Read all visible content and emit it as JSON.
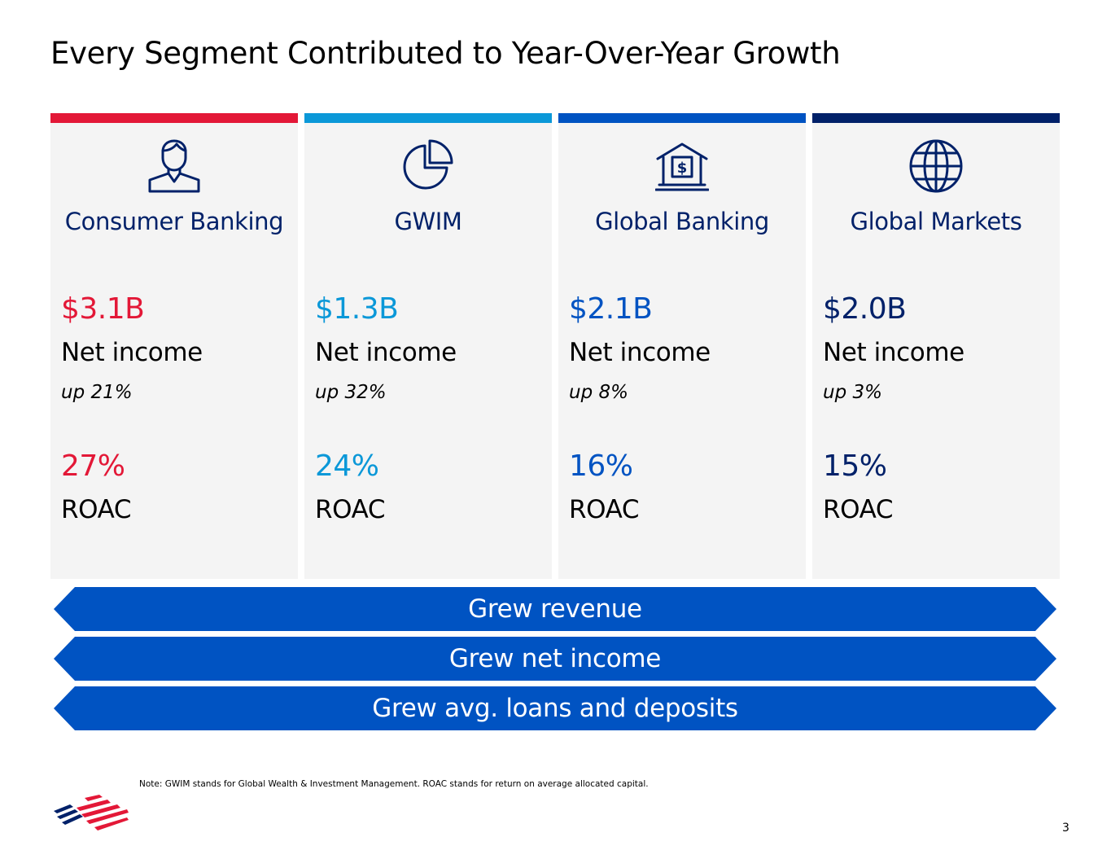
{
  "slide": {
    "title": "Every Segment Contributed to Year-Over-Year Growth",
    "page_number": "3",
    "note": "Note: GWIM stands for Global Wealth & Investment Management. ROAC stands for return on average allocated capital."
  },
  "colors": {
    "consumer": "#e31837",
    "gwim": "#0b98d8",
    "global_banking": "#0053c2",
    "global_markets": "#012169",
    "banner": "#0053c2",
    "panel": "#f4f4f4"
  },
  "segments": [
    {
      "name": "Consumer Banking",
      "icon": "person-icon",
      "net_income": "$3.1B",
      "net_income_label": "Net income",
      "change": "up 21%",
      "roac": "27%",
      "roac_label": "ROAC"
    },
    {
      "name": "GWIM",
      "icon": "pie-chart-icon",
      "net_income": "$1.3B",
      "net_income_label": "Net income",
      "change": "up 32%",
      "roac": "24%",
      "roac_label": "ROAC"
    },
    {
      "name": "Global Banking",
      "icon": "bank-dollar-icon",
      "net_income": "$2.1B",
      "net_income_label": "Net income",
      "change": "up 8%",
      "roac": "16%",
      "roac_label": "ROAC"
    },
    {
      "name": "Global Markets",
      "icon": "globe-icon",
      "net_income": "$2.0B",
      "net_income_label": "Net income",
      "change": "up 3%",
      "roac": "15%",
      "roac_label": "ROAC"
    }
  ],
  "banners": [
    "Grew revenue",
    "Grew net income",
    "Grew avg. loans and deposits"
  ]
}
